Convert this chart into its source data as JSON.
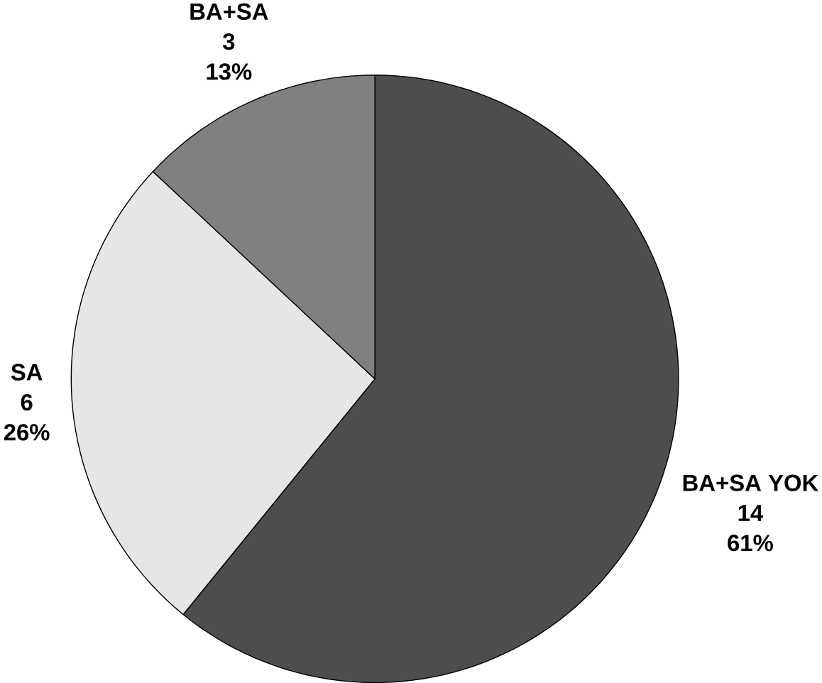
{
  "chart_data": {
    "type": "pie",
    "categories": [
      "BA+SA YOK",
      "SA",
      "BA+SA"
    ],
    "values": [
      14,
      6,
      3
    ],
    "value_labels": [
      "14",
      "6",
      "3"
    ],
    "annotations": [
      "61%",
      "26%",
      "13%"
    ],
    "colors": [
      "#4d4d4d",
      "#e6e6e6",
      "#808080"
    ]
  }
}
